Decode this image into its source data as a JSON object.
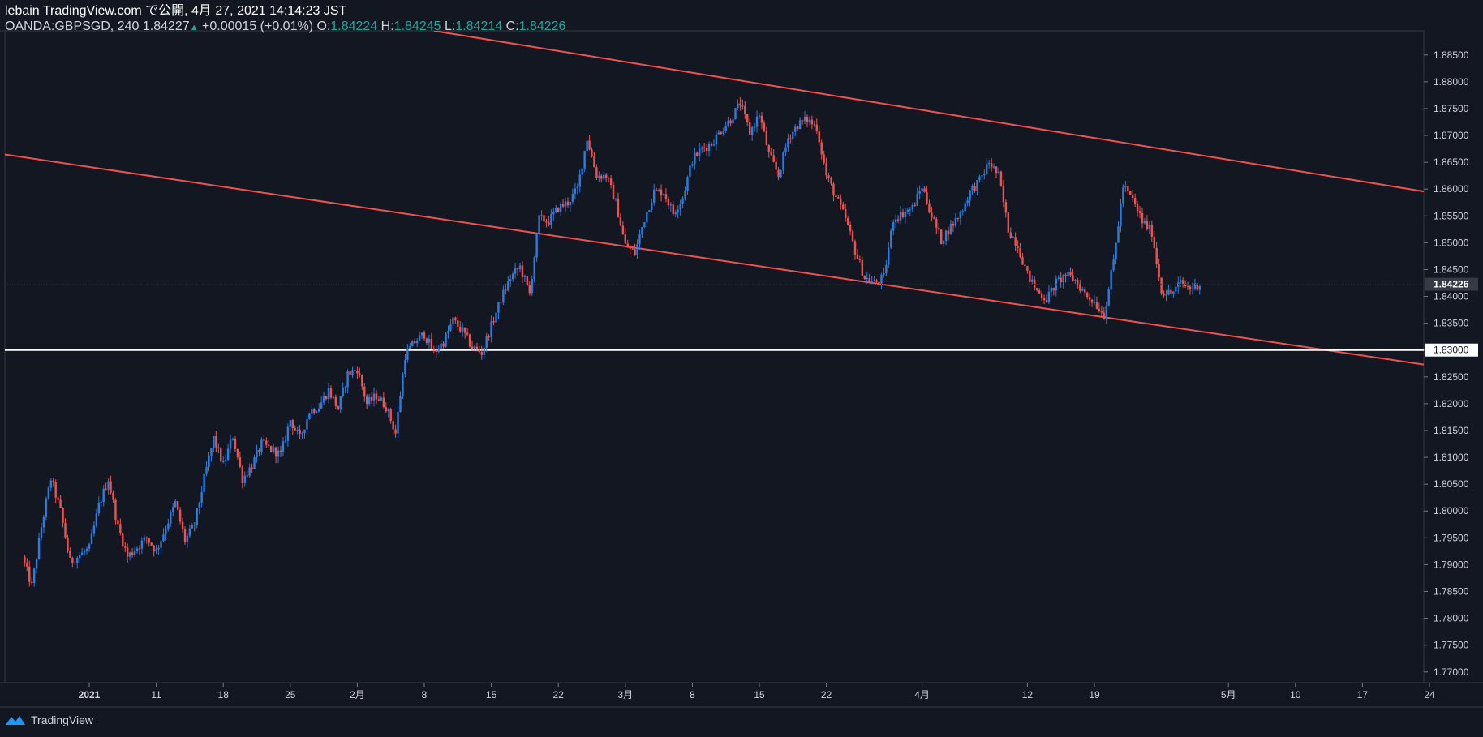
{
  "header": {
    "publish_line": "lebain TradingView.com で公開, 4月 27, 2021 14:14:23 JST",
    "symbol": "OANDA:GBPSGD, 240",
    "last": "1.84227",
    "change": "+0.00015 (+0.01%)",
    "o_label": "O:",
    "o_value": "1.84224",
    "h_label": "H:",
    "h_value": "1.84245",
    "l_label": "L:",
    "l_value": "1.84214",
    "c_label": "C:",
    "c_value": "1.84226"
  },
  "footer": {
    "brand": "TradingView"
  },
  "colors": {
    "background": "#131722",
    "up": "#2a7de1",
    "down": "#ef5350",
    "channel": "#f0534f",
    "support": "#ffffff",
    "axis_text": "#d1d4dc"
  },
  "chart_data": {
    "type": "line",
    "series_style": "candlestick",
    "symbol": "OANDA:GBPSGD",
    "timeframe": "240",
    "ylim": [
      1.768,
      1.8895
    ],
    "yticks": [
      1.77,
      1.775,
      1.78,
      1.785,
      1.79,
      1.795,
      1.8,
      1.805,
      1.81,
      1.815,
      1.82,
      1.825,
      1.83,
      1.835,
      1.84,
      1.845,
      1.85,
      1.855,
      1.86,
      1.865,
      1.87,
      1.875,
      1.88,
      1.885
    ],
    "ytick_labels": [
      "1.77000",
      "1.77500",
      "1.78000",
      "1.78500",
      "1.79000",
      "1.79500",
      "1.80000",
      "1.80500",
      "1.81000",
      "1.81500",
      "1.82000",
      "1.82500",
      "1.83000",
      "1.83500",
      "1.84000",
      "1.84500",
      "1.85000",
      "1.85500",
      "1.86000",
      "1.86500",
      "1.87000",
      "1.87500",
      "1.88000",
      "1.88500"
    ],
    "xticks": [
      {
        "label": "2021",
        "date": "2021-01-04"
      },
      {
        "label": "11",
        "date": "2021-01-11"
      },
      {
        "label": "18",
        "date": "2021-01-18"
      },
      {
        "label": "25",
        "date": "2021-01-25"
      },
      {
        "label": "2月",
        "date": "2021-02-01"
      },
      {
        "label": "8",
        "date": "2021-02-08"
      },
      {
        "label": "15",
        "date": "2021-02-15"
      },
      {
        "label": "22",
        "date": "2021-02-22"
      },
      {
        "label": "3月",
        "date": "2021-03-01"
      },
      {
        "label": "8",
        "date": "2021-03-08"
      },
      {
        "label": "15",
        "date": "2021-03-15"
      },
      {
        "label": "22",
        "date": "2021-03-22"
      },
      {
        "label": "4月",
        "date": "2021-04-01"
      },
      {
        "label": "12",
        "date": "2021-04-12"
      },
      {
        "label": "19",
        "date": "2021-04-19"
      },
      {
        "label": "5月",
        "date": "2021-05-03"
      },
      {
        "label": "10",
        "date": "2021-05-10"
      },
      {
        "label": "17",
        "date": "2021-05-17"
      },
      {
        "label": "24",
        "date": "2021-05-24"
      }
    ],
    "last_price_label": "1.84226",
    "last_price": 1.84226,
    "price_path": [
      [
        "2020-12-28",
        1.7915
      ],
      [
        "2020-12-29",
        1.786
      ],
      [
        "2020-12-30",
        1.797
      ],
      [
        "2020-12-31",
        1.806
      ],
      [
        "2021-01-01",
        1.8
      ],
      [
        "2021-01-02",
        1.7905
      ],
      [
        "2021-01-04",
        1.793
      ],
      [
        "2021-01-05",
        1.801
      ],
      [
        "2021-01-06",
        1.806
      ],
      [
        "2021-01-07",
        1.797
      ],
      [
        "2021-01-08",
        1.7915
      ],
      [
        "2021-01-10",
        1.795
      ],
      [
        "2021-01-11",
        1.7925
      ],
      [
        "2021-01-12",
        1.797
      ],
      [
        "2021-01-13",
        1.8015
      ],
      [
        "2021-01-14",
        1.7945
      ],
      [
        "2021-01-15",
        1.7975
      ],
      [
        "2021-01-16",
        1.806
      ],
      [
        "2021-01-17",
        1.8135
      ],
      [
        "2021-01-18",
        1.8085
      ],
      [
        "2021-01-19",
        1.814
      ],
      [
        "2021-01-20",
        1.806
      ],
      [
        "2021-01-21",
        1.8085
      ],
      [
        "2021-01-22",
        1.8125
      ],
      [
        "2021-01-24",
        1.8105
      ],
      [
        "2021-01-25",
        1.817
      ],
      [
        "2021-01-26",
        1.8135
      ],
      [
        "2021-01-27",
        1.8185
      ],
      [
        "2021-01-28",
        1.8195
      ],
      [
        "2021-01-29",
        1.8225
      ],
      [
        "2021-01-30",
        1.819
      ],
      [
        "2021-01-31",
        1.8255
      ],
      [
        "2021-02-01",
        1.8265
      ],
      [
        "2021-02-02",
        1.82
      ],
      [
        "2021-02-03",
        1.8215
      ],
      [
        "2021-02-04",
        1.8195
      ],
      [
        "2021-02-05",
        1.8145
      ],
      [
        "2021-02-06",
        1.829
      ],
      [
        "2021-02-07",
        1.8315
      ],
      [
        "2021-02-08",
        1.833
      ],
      [
        "2021-02-09",
        1.8295
      ],
      [
        "2021-02-10",
        1.8315
      ],
      [
        "2021-02-11",
        1.8355
      ],
      [
        "2021-02-12",
        1.8335
      ],
      [
        "2021-02-13",
        1.8305
      ],
      [
        "2021-02-14",
        1.8295
      ],
      [
        "2021-02-15",
        1.8345
      ],
      [
        "2021-02-16",
        1.8395
      ],
      [
        "2021-02-17",
        1.8435
      ],
      [
        "2021-02-18",
        1.8455
      ],
      [
        "2021-02-19",
        1.8405
      ],
      [
        "2021-02-20",
        1.8545
      ],
      [
        "2021-02-21",
        1.854
      ],
      [
        "2021-02-22",
        1.8565
      ],
      [
        "2021-02-23",
        1.8575
      ],
      [
        "2021-02-24",
        1.86
      ],
      [
        "2021-02-25",
        1.8695
      ],
      [
        "2021-02-26",
        1.8625
      ],
      [
        "2021-02-27",
        1.8625
      ],
      [
        "2021-02-28",
        1.8575
      ],
      [
        "2021-03-01",
        1.8495
      ],
      [
        "2021-03-02",
        1.848
      ],
      [
        "2021-03-03",
        1.8545
      ],
      [
        "2021-03-04",
        1.8595
      ],
      [
        "2021-03-05",
        1.8595
      ],
      [
        "2021-03-06",
        1.8555
      ],
      [
        "2021-03-07",
        1.8585
      ],
      [
        "2021-03-08",
        1.8655
      ],
      [
        "2021-03-09",
        1.8675
      ],
      [
        "2021-03-10",
        1.8685
      ],
      [
        "2021-03-11",
        1.871
      ],
      [
        "2021-03-12",
        1.873
      ],
      [
        "2021-03-13",
        1.876
      ],
      [
        "2021-03-14",
        1.8705
      ],
      [
        "2021-03-15",
        1.874
      ],
      [
        "2021-03-16",
        1.8665
      ],
      [
        "2021-03-17",
        1.8625
      ],
      [
        "2021-03-18",
        1.8695
      ],
      [
        "2021-03-19",
        1.872
      ],
      [
        "2021-03-20",
        1.873
      ],
      [
        "2021-03-21",
        1.8715
      ],
      [
        "2021-03-22",
        1.8625
      ],
      [
        "2021-03-23",
        1.8585
      ],
      [
        "2021-03-24",
        1.8545
      ],
      [
        "2021-03-25",
        1.8485
      ],
      [
        "2021-03-26",
        1.8435
      ],
      [
        "2021-03-27",
        1.8425
      ],
      [
        "2021-03-28",
        1.8435
      ],
      [
        "2021-03-29",
        1.8545
      ],
      [
        "2021-03-30",
        1.8555
      ],
      [
        "2021-03-31",
        1.8565
      ],
      [
        "2021-04-01",
        1.8605
      ],
      [
        "2021-04-02",
        1.855
      ],
      [
        "2021-04-03",
        1.8505
      ],
      [
        "2021-04-04",
        1.853
      ],
      [
        "2021-04-05",
        1.8555
      ],
      [
        "2021-04-06",
        1.8595
      ],
      [
        "2021-04-07",
        1.8615
      ],
      [
        "2021-04-08",
        1.865
      ],
      [
        "2021-04-09",
        1.8625
      ],
      [
        "2021-04-10",
        1.8525
      ],
      [
        "2021-04-11",
        1.8495
      ],
      [
        "2021-04-12",
        1.844
      ],
      [
        "2021-04-13",
        1.841
      ],
      [
        "2021-04-14",
        1.8395
      ],
      [
        "2021-04-15",
        1.8425
      ],
      [
        "2021-04-16",
        1.844
      ],
      [
        "2021-04-17",
        1.843
      ],
      [
        "2021-04-18",
        1.8405
      ],
      [
        "2021-04-19",
        1.839
      ],
      [
        "2021-04-20",
        1.8365
      ],
      [
        "2021-04-21",
        1.8465
      ],
      [
        "2021-04-22",
        1.8605
      ],
      [
        "2021-04-23",
        1.858
      ],
      [
        "2021-04-24",
        1.854
      ],
      [
        "2021-04-25",
        1.852
      ],
      [
        "2021-04-26",
        1.841
      ],
      [
        "2021-04-27",
        1.8405
      ],
      [
        "2021-04-28",
        1.8425
      ],
      [
        "2021-04-29",
        1.8415
      ],
      [
        "2021-04-30",
        1.8423
      ]
    ],
    "lines": [
      {
        "role": "channel-upper",
        "from": [
          "2021-02-09",
          1.8895
        ],
        "to": [
          "2021-06-03",
          1.8565
        ]
      },
      {
        "role": "channel-lower",
        "from": [
          "2020-12-26",
          1.8665
        ],
        "to": [
          "2021-06-03",
          1.8245
        ]
      },
      {
        "role": "horizontal-support",
        "y": 1.83
      }
    ]
  }
}
